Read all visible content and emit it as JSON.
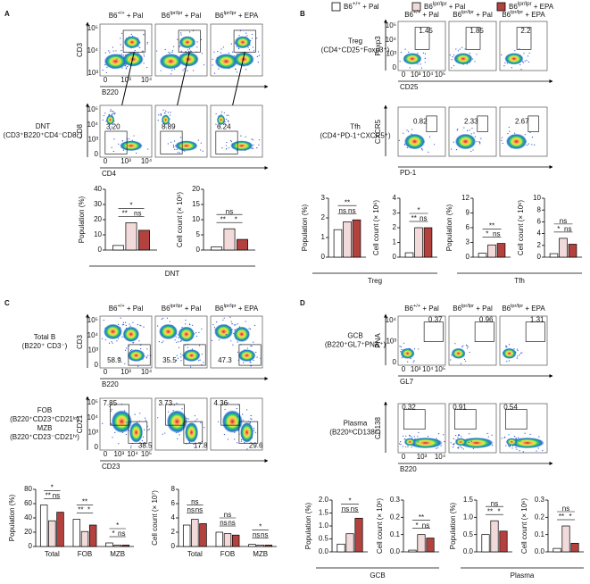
{
  "legend": [
    {
      "base": "B6",
      "sup": "+/+",
      "rest": " + Pal",
      "color": "#ffffff"
    },
    {
      "base": "B6",
      "sup": "lpr/lpr",
      "rest": " + Pal",
      "color": "#f3dada"
    },
    {
      "base": "B6",
      "sup": "lpr/lpr",
      "rest": " + EPA",
      "color": "#b3423f"
    }
  ],
  "panels": [
    {
      "letter": "A",
      "rows": [
        {
          "yaxis": "CD3",
          "xaxis": "B220",
          "yticks": [
            "10³",
            "10⁴",
            "10⁵"
          ],
          "xticks": [
            "0",
            "10³",
            "10⁴"
          ]
        },
        {
          "label": [
            "DNT",
            "(CD3⁺B220⁺CD4⁻CD8⁻)"
          ],
          "yaxis": "CD8",
          "xaxis": "CD4",
          "yticks": [
            "0",
            "10³",
            "10⁴",
            "10⁵"
          ],
          "xticks": [
            "0",
            "10³",
            "10⁴"
          ],
          "gates": [
            [
              "3.20"
            ],
            [
              "8.89"
            ],
            [
              "6.24"
            ]
          ]
        }
      ]
    },
    {
      "letter": "B",
      "rows": [
        {
          "label": [
            "Treg",
            "(CD4⁺CD25⁺Foxp3⁺)"
          ],
          "yaxis": "Foxp3",
          "xaxis": "CD25",
          "yticks": [
            "0",
            "10³",
            "10⁴",
            "10⁵"
          ],
          "xticks": [
            "0",
            "10³",
            "10⁴",
            "10⁵"
          ],
          "gates": [
            [
              "1.45"
            ],
            [
              "1.85"
            ],
            [
              "2.2"
            ]
          ]
        },
        {
          "label": [
            "Tfh",
            "(CD4⁺PD-1⁺CXCR5⁺)"
          ],
          "yaxis": "CXCR5",
          "xaxis": "PD-1",
          "gates": [
            [
              "0.82"
            ],
            [
              "2.33"
            ],
            [
              "2.67"
            ]
          ]
        }
      ]
    },
    {
      "letter": "C",
      "rows": [
        {
          "label": [
            "Total B",
            "(B220⁺ CD3⁻)"
          ],
          "yaxis": "CD3",
          "xaxis": "B220",
          "yticks": [
            "0",
            "10³",
            "10⁴",
            "10⁵"
          ],
          "xticks": [
            "0",
            "10³",
            "10⁴"
          ],
          "gates": [
            [
              "58.9"
            ],
            [
              "35.5"
            ],
            [
              "47.3"
            ]
          ]
        },
        {
          "label": [
            "FOB",
            "(B220⁺CD23⁺CD21ˡᵒ)",
            "MZB",
            "(B220⁺CD23⁻CD21ʰⁱ)"
          ],
          "yaxis": "CD21",
          "xaxis": "CD23",
          "yticks": [
            "0",
            "10³",
            "10⁴",
            "10⁵"
          ],
          "xticks": [
            "0",
            "10³",
            "10⁴",
            "10⁵"
          ],
          "gates": [
            [
              "7.85",
              "38.5"
            ],
            [
              "3.73",
              "17.8"
            ],
            [
              "4.36",
              "29.6"
            ]
          ]
        }
      ]
    },
    {
      "letter": "D",
      "rows": [
        {
          "label": [
            "GCB",
            "(B220⁺GL7⁺PNA⁺)"
          ],
          "yaxis": "PNA",
          "xaxis": "GL7",
          "yticks": [
            "0",
            "10³",
            "10⁴"
          ],
          "xticks": [
            "0",
            "10³",
            "10⁴",
            "10⁵"
          ],
          "gates": [
            [
              "0.37"
            ],
            [
              "0.96"
            ],
            [
              "1.31"
            ]
          ]
        },
        {
          "label": [
            "Plasma",
            "(B220ˡᵒCD138⁺)"
          ],
          "yaxis": "CD138",
          "xaxis": "B220",
          "xticks": [
            "0",
            "10³",
            "10⁴"
          ],
          "gates": [
            [
              "0.32"
            ],
            [
              "0.91"
            ],
            [
              "0.54"
            ]
          ]
        }
      ]
    }
  ],
  "bar_groups": [
    {
      "label": "DNT",
      "charts": [
        0,
        1
      ]
    },
    {
      "label": "Treg",
      "charts": [
        2,
        3
      ]
    },
    {
      "label": "Tfh",
      "charts": [
        4,
        5
      ]
    },
    {
      "label": "GCB",
      "charts": [
        8,
        9
      ]
    },
    {
      "label": "Plasma",
      "charts": [
        10,
        11
      ]
    }
  ],
  "chart_data": [
    {
      "type": "bar",
      "ylabel": "Population (%)",
      "categories": [
        null
      ],
      "values": [
        [
          3,
          18,
          13
        ]
      ],
      "ylim": [
        0,
        40
      ],
      "yticks": [
        0,
        10,
        20,
        30,
        40
      ],
      "comparisons": [
        {
          "label": "**",
          "category": 0,
          "bars": [
            0,
            1
          ]
        },
        {
          "label": "ns",
          "category": 0,
          "bars": [
            1,
            2
          ]
        },
        {
          "label": "*",
          "category": 0,
          "bars": [
            0,
            2
          ]
        }
      ]
    },
    {
      "type": "bar",
      "ylabel": "Cell count (× 10⁶)",
      "categories": [
        null
      ],
      "values": [
        [
          1,
          7,
          3.5
        ]
      ],
      "ylim": [
        0,
        20
      ],
      "yticks": [
        0,
        5,
        10,
        15,
        20
      ],
      "comparisons": [
        {
          "label": "**",
          "category": 0,
          "bars": [
            0,
            1
          ]
        },
        {
          "label": "*",
          "category": 0,
          "bars": [
            1,
            2
          ]
        },
        {
          "label": "ns",
          "category": 0,
          "bars": [
            0,
            2
          ]
        }
      ]
    },
    {
      "type": "bar",
      "ylabel": "Population (%)",
      "categories": [
        null
      ],
      "values": [
        [
          1.4,
          1.8,
          1.9
        ]
      ],
      "ylim": [
        0,
        3
      ],
      "yticks": [
        0,
        1,
        2,
        3
      ],
      "comparisons": [
        {
          "label": "ns",
          "category": 0,
          "bars": [
            0,
            1
          ]
        },
        {
          "label": "ns",
          "category": 0,
          "bars": [
            1,
            2
          ]
        },
        {
          "label": "**",
          "category": 0,
          "bars": [
            0,
            2
          ]
        }
      ]
    },
    {
      "type": "bar",
      "ylabel": "Cell count (× 10⁶)",
      "categories": [
        null
      ],
      "values": [
        [
          0.3,
          2,
          2
        ]
      ],
      "ylim": [
        0,
        4
      ],
      "yticks": [
        0,
        1,
        2,
        3,
        4
      ],
      "comparisons": [
        {
          "label": "**",
          "category": 0,
          "bars": [
            0,
            1
          ]
        },
        {
          "label": "ns",
          "category": 0,
          "bars": [
            1,
            2
          ]
        },
        {
          "label": "*",
          "category": 0,
          "bars": [
            0,
            2
          ]
        }
      ]
    },
    {
      "type": "bar",
      "ylabel": "Population (%)",
      "categories": [
        null
      ],
      "values": [
        [
          0.8,
          2.5,
          2.8
        ]
      ],
      "ylim": [
        0,
        12
      ],
      "yticks": [
        0,
        3,
        6,
        9,
        12
      ],
      "comparisons": [
        {
          "label": "*",
          "category": 0,
          "bars": [
            0,
            1
          ]
        },
        {
          "label": "ns",
          "category": 0,
          "bars": [
            1,
            2
          ]
        },
        {
          "label": "**",
          "category": 0,
          "bars": [
            0,
            2
          ]
        }
      ]
    },
    {
      "type": "bar",
      "ylabel": "Cell count (× 10⁶)",
      "categories": [
        null
      ],
      "values": [
        [
          0.6,
          3.2,
          2.2
        ]
      ],
      "ylim": [
        0,
        10
      ],
      "yticks": [
        0,
        2,
        4,
        6,
        8,
        10
      ],
      "comparisons": [
        {
          "label": "*",
          "category": 0,
          "bars": [
            0,
            1
          ]
        },
        {
          "label": "ns",
          "category": 0,
          "bars": [
            1,
            2
          ]
        },
        {
          "label": "ns",
          "category": 0,
          "bars": [
            0,
            2
          ]
        }
      ]
    },
    {
      "type": "bar",
      "ylabel": "Population (%)",
      "categories": [
        "Total",
        "FOB",
        "MZB"
      ],
      "values": [
        [
          58,
          36,
          48
        ],
        [
          38,
          21,
          30
        ],
        [
          5,
          2,
          2
        ]
      ],
      "ylim": [
        0,
        80
      ],
      "yticks": [
        0,
        20,
        40,
        60,
        80
      ],
      "comparisons": [
        {
          "label": "**",
          "category": 0,
          "bars": [
            0,
            1
          ]
        },
        {
          "label": "ns",
          "category": 0,
          "bars": [
            1,
            2
          ]
        },
        {
          "label": "*",
          "category": 0,
          "bars": [
            0,
            2
          ]
        },
        {
          "label": "**",
          "category": 1,
          "bars": [
            0,
            1
          ]
        },
        {
          "label": "*",
          "category": 1,
          "bars": [
            1,
            2
          ]
        },
        {
          "label": "**",
          "category": 1,
          "bars": [
            0,
            2
          ]
        },
        {
          "label": "*",
          "category": 2,
          "bars": [
            0,
            1
          ]
        },
        {
          "label": "ns",
          "category": 2,
          "bars": [
            1,
            2
          ]
        },
        {
          "label": "*",
          "category": 2,
          "bars": [
            0,
            2
          ]
        }
      ]
    },
    {
      "type": "bar",
      "ylabel": "Cell count (× 10⁷)",
      "categories": [
        "Total",
        "FOB",
        "MZB"
      ],
      "values": [
        [
          3,
          3.8,
          3.2
        ],
        [
          2,
          1.8,
          1.6
        ],
        [
          0.3,
          0.2,
          0.2
        ]
      ],
      "ylim": [
        0,
        8
      ],
      "yticks": [
        0,
        2,
        4,
        6,
        8
      ],
      "comparisons": [
        {
          "label": "ns",
          "category": 0,
          "bars": [
            0,
            1
          ]
        },
        {
          "label": "ns",
          "category": 0,
          "bars": [
            1,
            2
          ]
        },
        {
          "label": "ns",
          "category": 0,
          "bars": [
            0,
            2
          ]
        },
        {
          "label": "ns",
          "category": 1,
          "bars": [
            0,
            1
          ]
        },
        {
          "label": "ns",
          "category": 1,
          "bars": [
            1,
            2
          ]
        },
        {
          "label": "ns",
          "category": 1,
          "bars": [
            0,
            2
          ]
        },
        {
          "label": "ns",
          "category": 2,
          "bars": [
            0,
            1
          ]
        },
        {
          "label": "ns",
          "category": 2,
          "bars": [
            1,
            2
          ]
        },
        {
          "label": "*",
          "category": 2,
          "bars": [
            0,
            2
          ]
        }
      ]
    },
    {
      "type": "bar",
      "ylabel": "Population (%)",
      "categories": [
        null
      ],
      "values": [
        [
          0.3,
          0.7,
          1.3
        ]
      ],
      "ylim": [
        0,
        2
      ],
      "yticks": [
        {
          "value": 0,
          "label": "0.0"
        },
        0.5,
        {
          "value": 1,
          "label": "1.0"
        },
        1.5,
        {
          "value": 2,
          "label": "2.0"
        }
      ],
      "comparisons": [
        {
          "label": "ns",
          "category": 0,
          "bars": [
            0,
            1
          ]
        },
        {
          "label": "ns",
          "category": 0,
          "bars": [
            1,
            2
          ]
        },
        {
          "label": "*",
          "category": 0,
          "bars": [
            0,
            2
          ]
        }
      ]
    },
    {
      "type": "bar",
      "ylabel": "Cell count (× 10⁶)",
      "categories": [
        null
      ],
      "values": [
        [
          0.01,
          0.1,
          0.08
        ]
      ],
      "ylim": [
        0,
        0.3
      ],
      "yticks": [
        {
          "value": 0,
          "label": "0.0"
        },
        0.1,
        0.2,
        0.3
      ],
      "comparisons": [
        {
          "label": "*",
          "category": 0,
          "bars": [
            0,
            1
          ]
        },
        {
          "label": "ns",
          "category": 0,
          "bars": [
            1,
            2
          ]
        },
        {
          "label": "**",
          "category": 0,
          "bars": [
            0,
            2
          ]
        }
      ]
    },
    {
      "type": "bar",
      "ylabel": "Population (%)",
      "categories": [
        null
      ],
      "values": [
        [
          0.5,
          0.9,
          0.6
        ]
      ],
      "ylim": [
        0,
        1.5
      ],
      "yticks": [
        {
          "value": 0,
          "label": "0.0"
        },
        0.5,
        {
          "value": 1,
          "label": "1.0"
        },
        1.5
      ],
      "comparisons": [
        {
          "label": "**",
          "category": 0,
          "bars": [
            0,
            1
          ]
        },
        {
          "label": "*",
          "category": 0,
          "bars": [
            1,
            2
          ]
        },
        {
          "label": "ns",
          "category": 0,
          "bars": [
            0,
            2
          ]
        }
      ]
    },
    {
      "type": "bar",
      "ylabel": "Cell count (× 10⁶)",
      "categories": [
        null
      ],
      "values": [
        [
          0.02,
          0.15,
          0.05
        ]
      ],
      "ylim": [
        0,
        0.3
      ],
      "yticks": [
        {
          "value": 0,
          "label": "0.0"
        },
        0.1,
        0.2,
        0.3
      ],
      "comparisons": [
        {
          "label": "**",
          "category": 0,
          "bars": [
            0,
            1
          ]
        },
        {
          "label": "*",
          "category": 0,
          "bars": [
            1,
            2
          ]
        },
        {
          "label": "ns",
          "category": 0,
          "bars": [
            0,
            2
          ]
        }
      ]
    }
  ]
}
